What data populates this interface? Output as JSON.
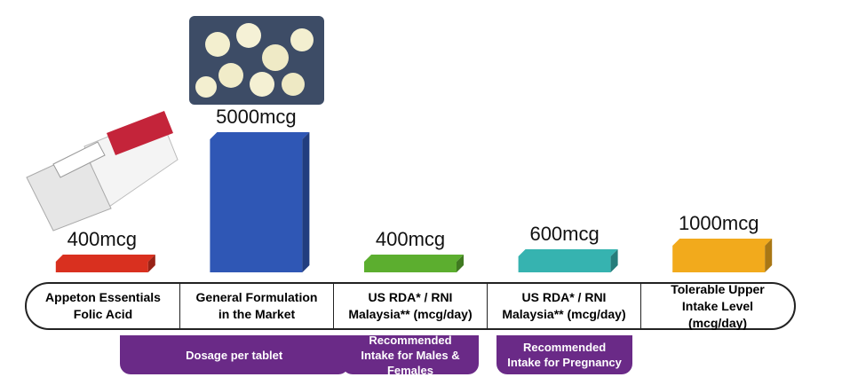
{
  "chart_data": {
    "type": "bar",
    "categories": [
      "Appeton Essentials Folic Acid",
      "General Formulation in the Market",
      "US RDA* / RNI Malaysia** (mcg/day)",
      "US RDA* / RNI Malaysia** (mcg/day)",
      "Tolerable Upper Intake Level (mcg/day)"
    ],
    "values": [
      400,
      5000,
      400,
      600,
      1000
    ],
    "value_labels": [
      "400mcg",
      "5000mcg",
      "400mcg",
      "600mcg",
      "1000mcg"
    ],
    "colors": [
      "#d9301f",
      "#2f57b5",
      "#5cae2f",
      "#36b3b0",
      "#f2aa1c"
    ],
    "groups": [
      {
        "label": "Dosage per tablet",
        "from": 0,
        "to": 1
      },
      {
        "label": "Recommended Intake for Males & Females",
        "from": 2,
        "to": 2
      },
      {
        "label": "Recommended Intake for Pregnancy",
        "from": 3,
        "to": 3
      }
    ]
  }
}
